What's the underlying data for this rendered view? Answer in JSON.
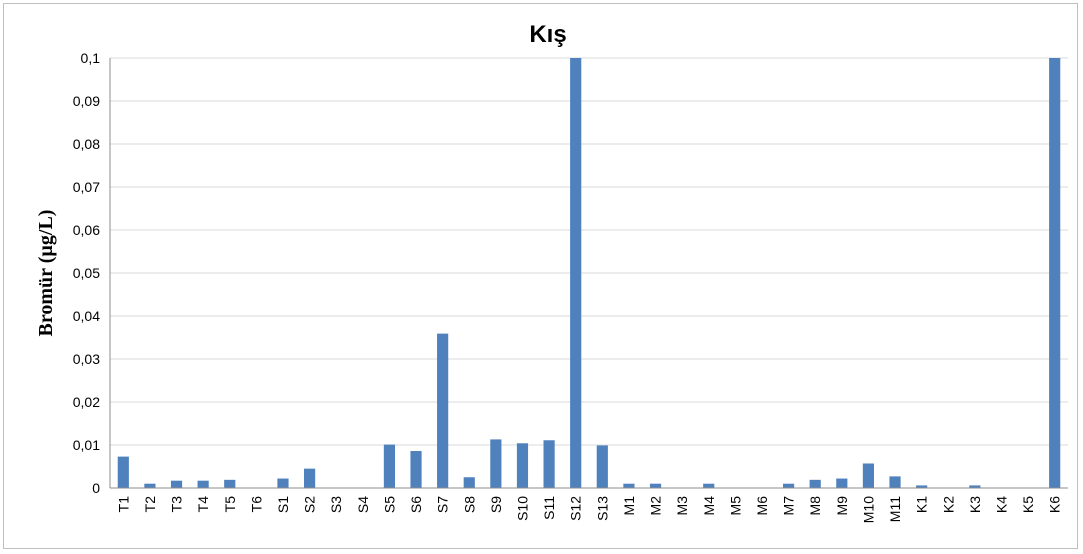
{
  "chart_data": {
    "type": "bar",
    "title": "Kış",
    "xlabel": "",
    "ylabel": "Bromür (µg/L)",
    "ylim": [
      0,
      0.1
    ],
    "yticks": [
      "0",
      "0,01",
      "0,02",
      "0,03",
      "0,04",
      "0,05",
      "0,06",
      "0,07",
      "0,08",
      "0,09",
      "0,1"
    ],
    "grid": true,
    "legend": "none",
    "bar_color": "#4f81bd",
    "categories": [
      "T1",
      "T2",
      "T3",
      "T4",
      "T5",
      "T6",
      "S1",
      "S2",
      "S3",
      "S4",
      "S5",
      "S6",
      "S7",
      "S8",
      "S9",
      "S10",
      "S11",
      "S12",
      "S13",
      "M1",
      "M2",
      "M3",
      "M4",
      "M5",
      "M6",
      "M7",
      "M8",
      "M9",
      "M10",
      "M11",
      "K1",
      "K2",
      "K3",
      "K4",
      "K5",
      "K6"
    ],
    "values": [
      0.0073,
      0.001,
      0.0017,
      0.0017,
      0.0019,
      0,
      0.0022,
      0.0045,
      0,
      0,
      0.0101,
      0.0086,
      0.0359,
      0.0025,
      0.0113,
      0.0104,
      0.0111,
      0.1,
      0.0099,
      0.001,
      0.001,
      0,
      0.001,
      0,
      0,
      0.001,
      0.0019,
      0.0022,
      0.0057,
      0.0027,
      0.0006,
      0,
      0.0006,
      0,
      0,
      0.1
    ]
  }
}
